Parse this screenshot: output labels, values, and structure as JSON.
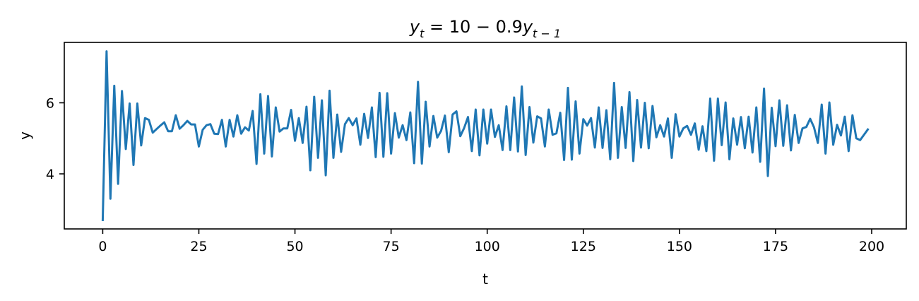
{
  "chart_data": {
    "type": "line",
    "title": "y_t = 10 - 0.9y_{t-1}",
    "xlabel": "t",
    "ylabel": "y",
    "xlim": [
      -10,
      209
    ],
    "ylim": [
      2.45,
      7.7
    ],
    "xticks": [
      0,
      25,
      50,
      75,
      100,
      125,
      150,
      175,
      200
    ],
    "yticks": [
      4,
      6
    ],
    "grid": false,
    "color": "#1f77b4",
    "series": [
      {
        "values": [
          2.7,
          7.45,
          3.3,
          6.48,
          3.72,
          6.33,
          4.7,
          5.98,
          4.25,
          5.98,
          4.8,
          5.57,
          5.52,
          5.16,
          5.26,
          5.36,
          5.45,
          5.2,
          5.2,
          5.65,
          5.27,
          5.37,
          5.49,
          5.39,
          5.39,
          4.77,
          5.24,
          5.37,
          5.4,
          5.13,
          5.12,
          5.52,
          4.77,
          5.52,
          5.05,
          5.65,
          5.13,
          5.31,
          5.22,
          5.77,
          4.28,
          6.24,
          4.57,
          6.19,
          4.49,
          5.87,
          5.19,
          5.28,
          5.28,
          5.8,
          4.93,
          5.57,
          4.87,
          5.89,
          4.1,
          6.17,
          4.45,
          6.07,
          3.96,
          6.34,
          4.45,
          5.67,
          4.62,
          5.4,
          5.57,
          5.37,
          5.56,
          4.82,
          5.69,
          5.01,
          5.87,
          4.47,
          6.28,
          4.48,
          6.27,
          4.57,
          5.71,
          5.02,
          5.37,
          4.95,
          5.73,
          4.3,
          6.59,
          4.29,
          6.03,
          4.77,
          5.63,
          5.02,
          5.21,
          5.64,
          4.61,
          5.67,
          5.76,
          5.06,
          5.29,
          5.6,
          4.64,
          5.81,
          4.52,
          5.81,
          4.85,
          5.81,
          5.04,
          5.37,
          4.67,
          5.9,
          4.67,
          6.15,
          4.63,
          6.46,
          4.53,
          5.88,
          4.88,
          5.62,
          5.56,
          4.77,
          5.81,
          5.1,
          5.14,
          5.72,
          4.39,
          6.42,
          4.4,
          6.04,
          4.57,
          5.54,
          5.36,
          5.57,
          4.74,
          5.87,
          4.73,
          5.79,
          4.41,
          6.56,
          4.45,
          5.88,
          4.73,
          6.3,
          4.36,
          6.08,
          4.74,
          6.0,
          4.72,
          5.91,
          5.03,
          5.37,
          5.05,
          5.56,
          4.45,
          5.68,
          5.05,
          5.28,
          5.35,
          5.1,
          5.42,
          4.68,
          5.34,
          4.64,
          6.12,
          4.37,
          6.12,
          4.81,
          6.01,
          4.41,
          5.56,
          4.82,
          5.6,
          4.72,
          5.61,
          4.6,
          5.87,
          4.34,
          6.4,
          3.94,
          5.86,
          4.78,
          6.07,
          4.79,
          5.93,
          4.66,
          5.66,
          4.87,
          5.28,
          5.32,
          5.55,
          5.31,
          4.87,
          5.95,
          4.57,
          6.01,
          4.82,
          5.38,
          5.08,
          5.61,
          4.64,
          5.65,
          5.0,
          4.95,
          5.1,
          5.25
        ]
      }
    ]
  }
}
